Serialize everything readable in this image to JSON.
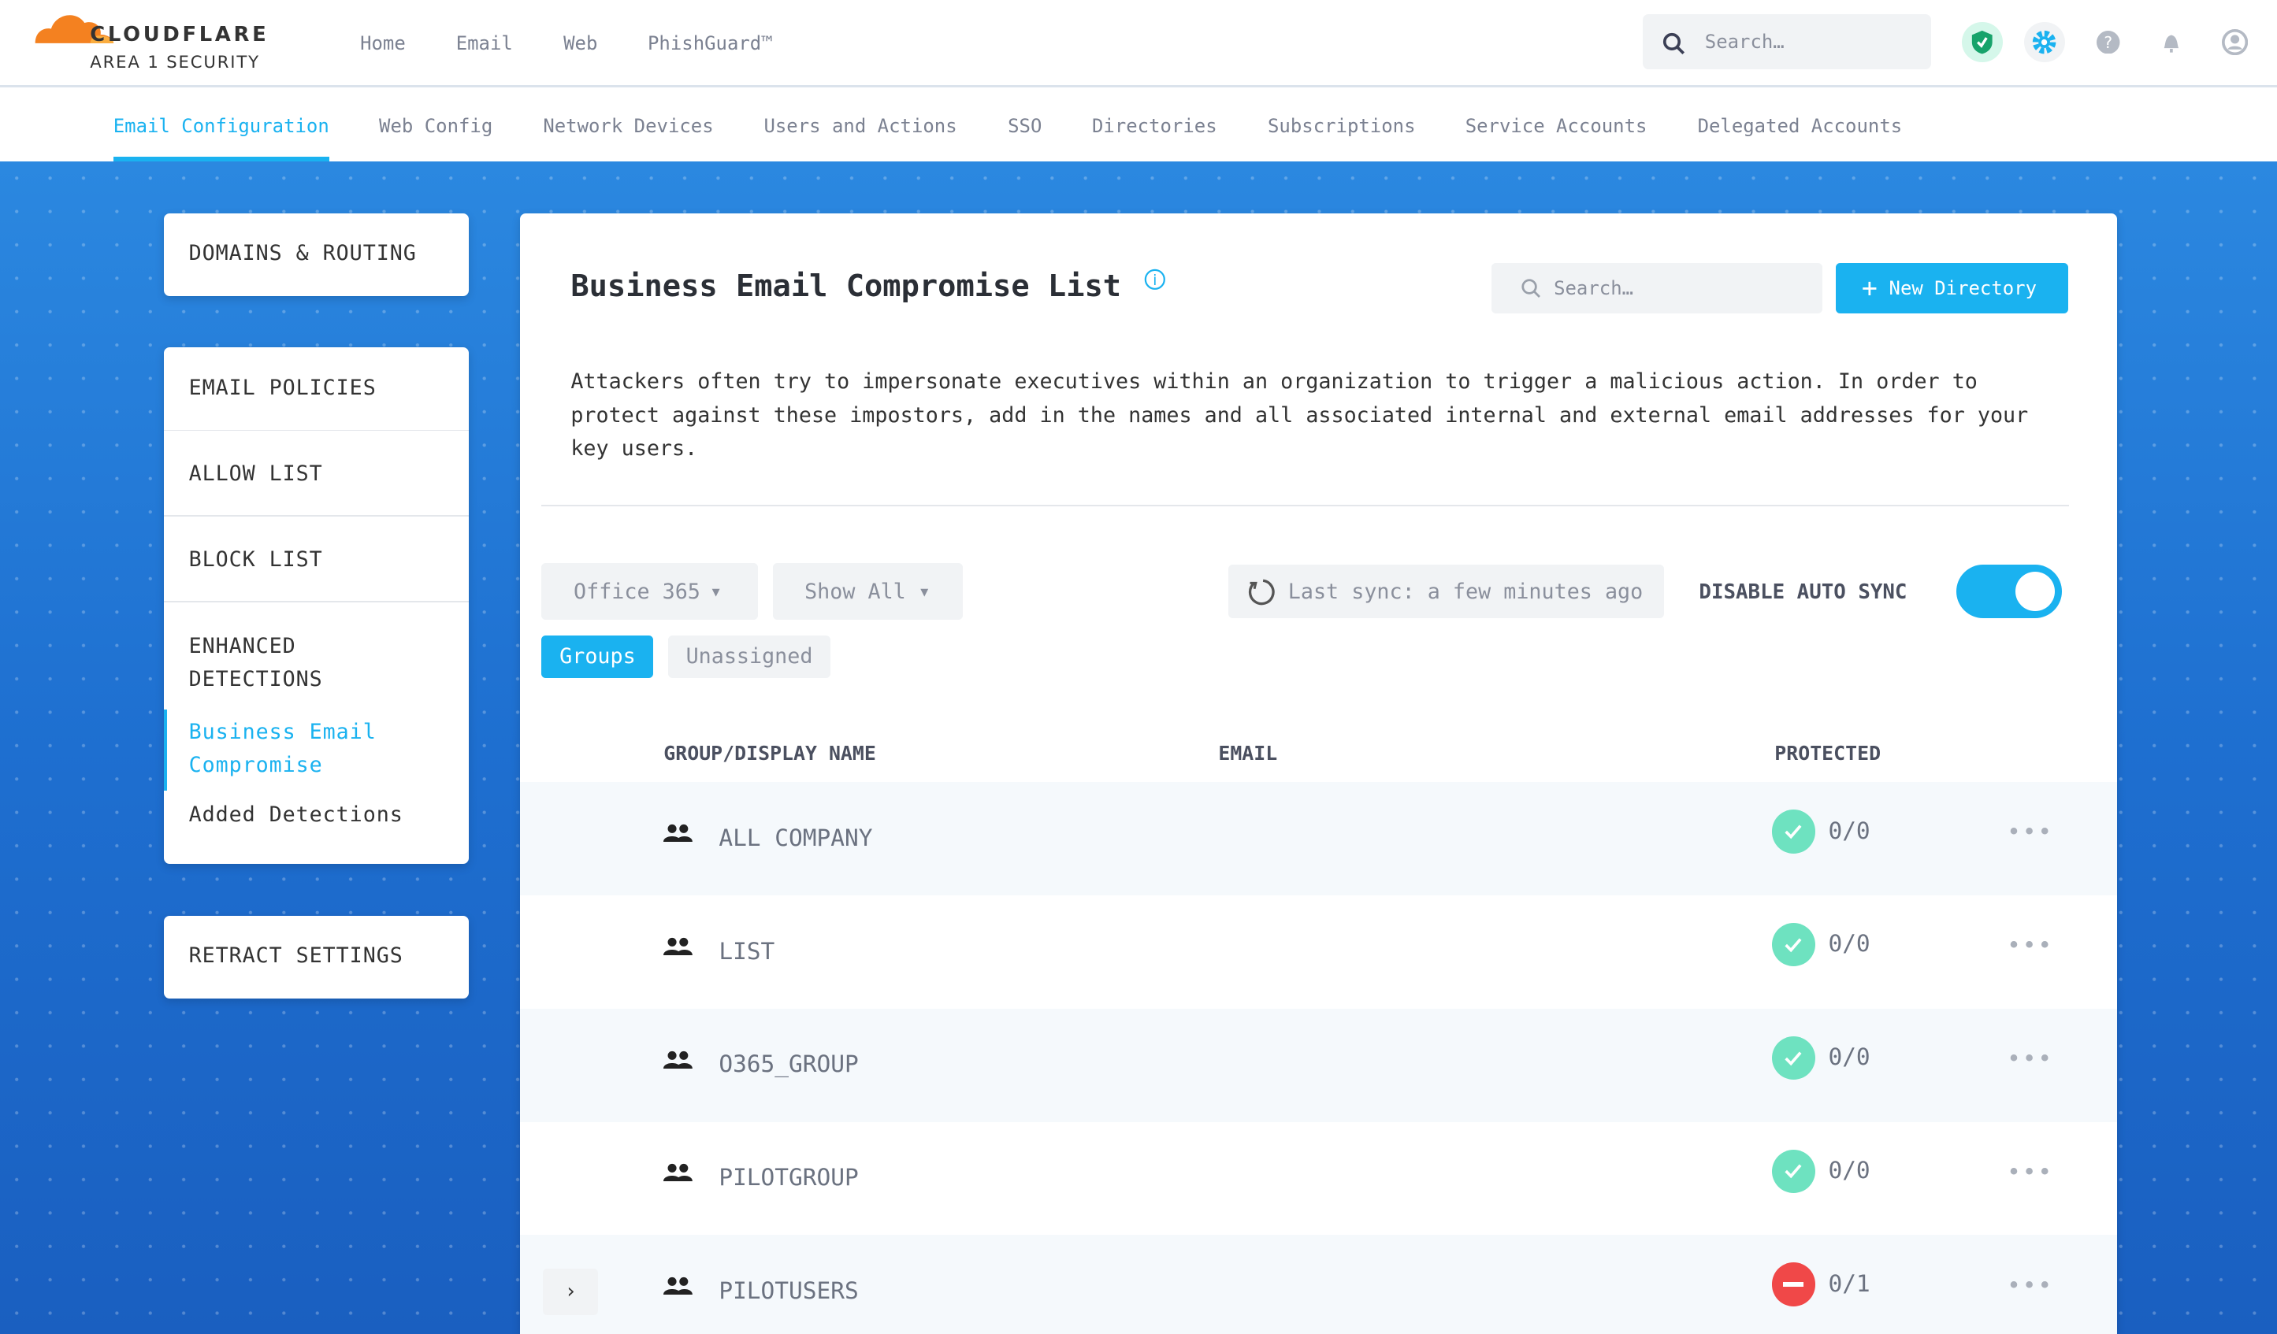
{
  "brand": {
    "name": "CLOUDFLARE",
    "sub": "AREA 1 SECURITY"
  },
  "top_nav": [
    "Home",
    "Email",
    "Web",
    "PhishGuard™"
  ],
  "header_search": {
    "placeholder": "Search…"
  },
  "header_icons": [
    "shield-check-icon",
    "gear-icon",
    "help-icon",
    "bell-icon",
    "user-icon"
  ],
  "tabs": [
    {
      "label": "Email Configuration",
      "active": true
    },
    {
      "label": "Web Config"
    },
    {
      "label": "Network Devices"
    },
    {
      "label": "Users and Actions"
    },
    {
      "label": "SSO"
    },
    {
      "label": "Directories"
    },
    {
      "label": "Subscriptions"
    },
    {
      "label": "Service Accounts"
    },
    {
      "label": "Delegated Accounts"
    }
  ],
  "sidebar": {
    "domains": "DOMAINS & ROUTING",
    "email_policies": "EMAIL POLICIES",
    "allow_list": "ALLOW LIST",
    "block_list": "BLOCK LIST",
    "enhanced": "ENHANCED DETECTIONS",
    "bec": "Business Email Compromise",
    "added": "Added Detections",
    "retract": "RETRACT SETTINGS"
  },
  "main": {
    "title": "Business Email Compromise List",
    "search_placeholder": "Search…",
    "new_button": "New Directory",
    "description": "Attackers often try to impersonate executives within an organization to trigger a malicious action. In order to protect against these impostors, add in the names and all associated internal and external email addresses for your key users.",
    "source_select": "Office 365",
    "filter_select": "Show All",
    "last_sync": "Last sync: a few minutes ago",
    "auto_sync_label": "DISABLE AUTO SYNC",
    "auto_sync_on": true,
    "view_groups": "Groups",
    "view_unassigned": "Unassigned",
    "columns": [
      "GROUP/DISPLAY NAME",
      "EMAIL",
      "PROTECTED"
    ],
    "rows": [
      {
        "name": "ALL COMPANY",
        "protected": "0/0",
        "status": "ok"
      },
      {
        "name": "LIST",
        "protected": "0/0",
        "status": "ok"
      },
      {
        "name": "O365_GROUP",
        "protected": "0/0",
        "status": "ok"
      },
      {
        "name": "PILOTGROUP",
        "protected": "0/0",
        "status": "ok"
      },
      {
        "name": "PILOTUSERS",
        "protected": "0/1",
        "status": "blocked"
      }
    ]
  },
  "colors": {
    "accent": "#1ab2f0",
    "ok": "#6ee2c0",
    "blocked": "#f04848"
  }
}
